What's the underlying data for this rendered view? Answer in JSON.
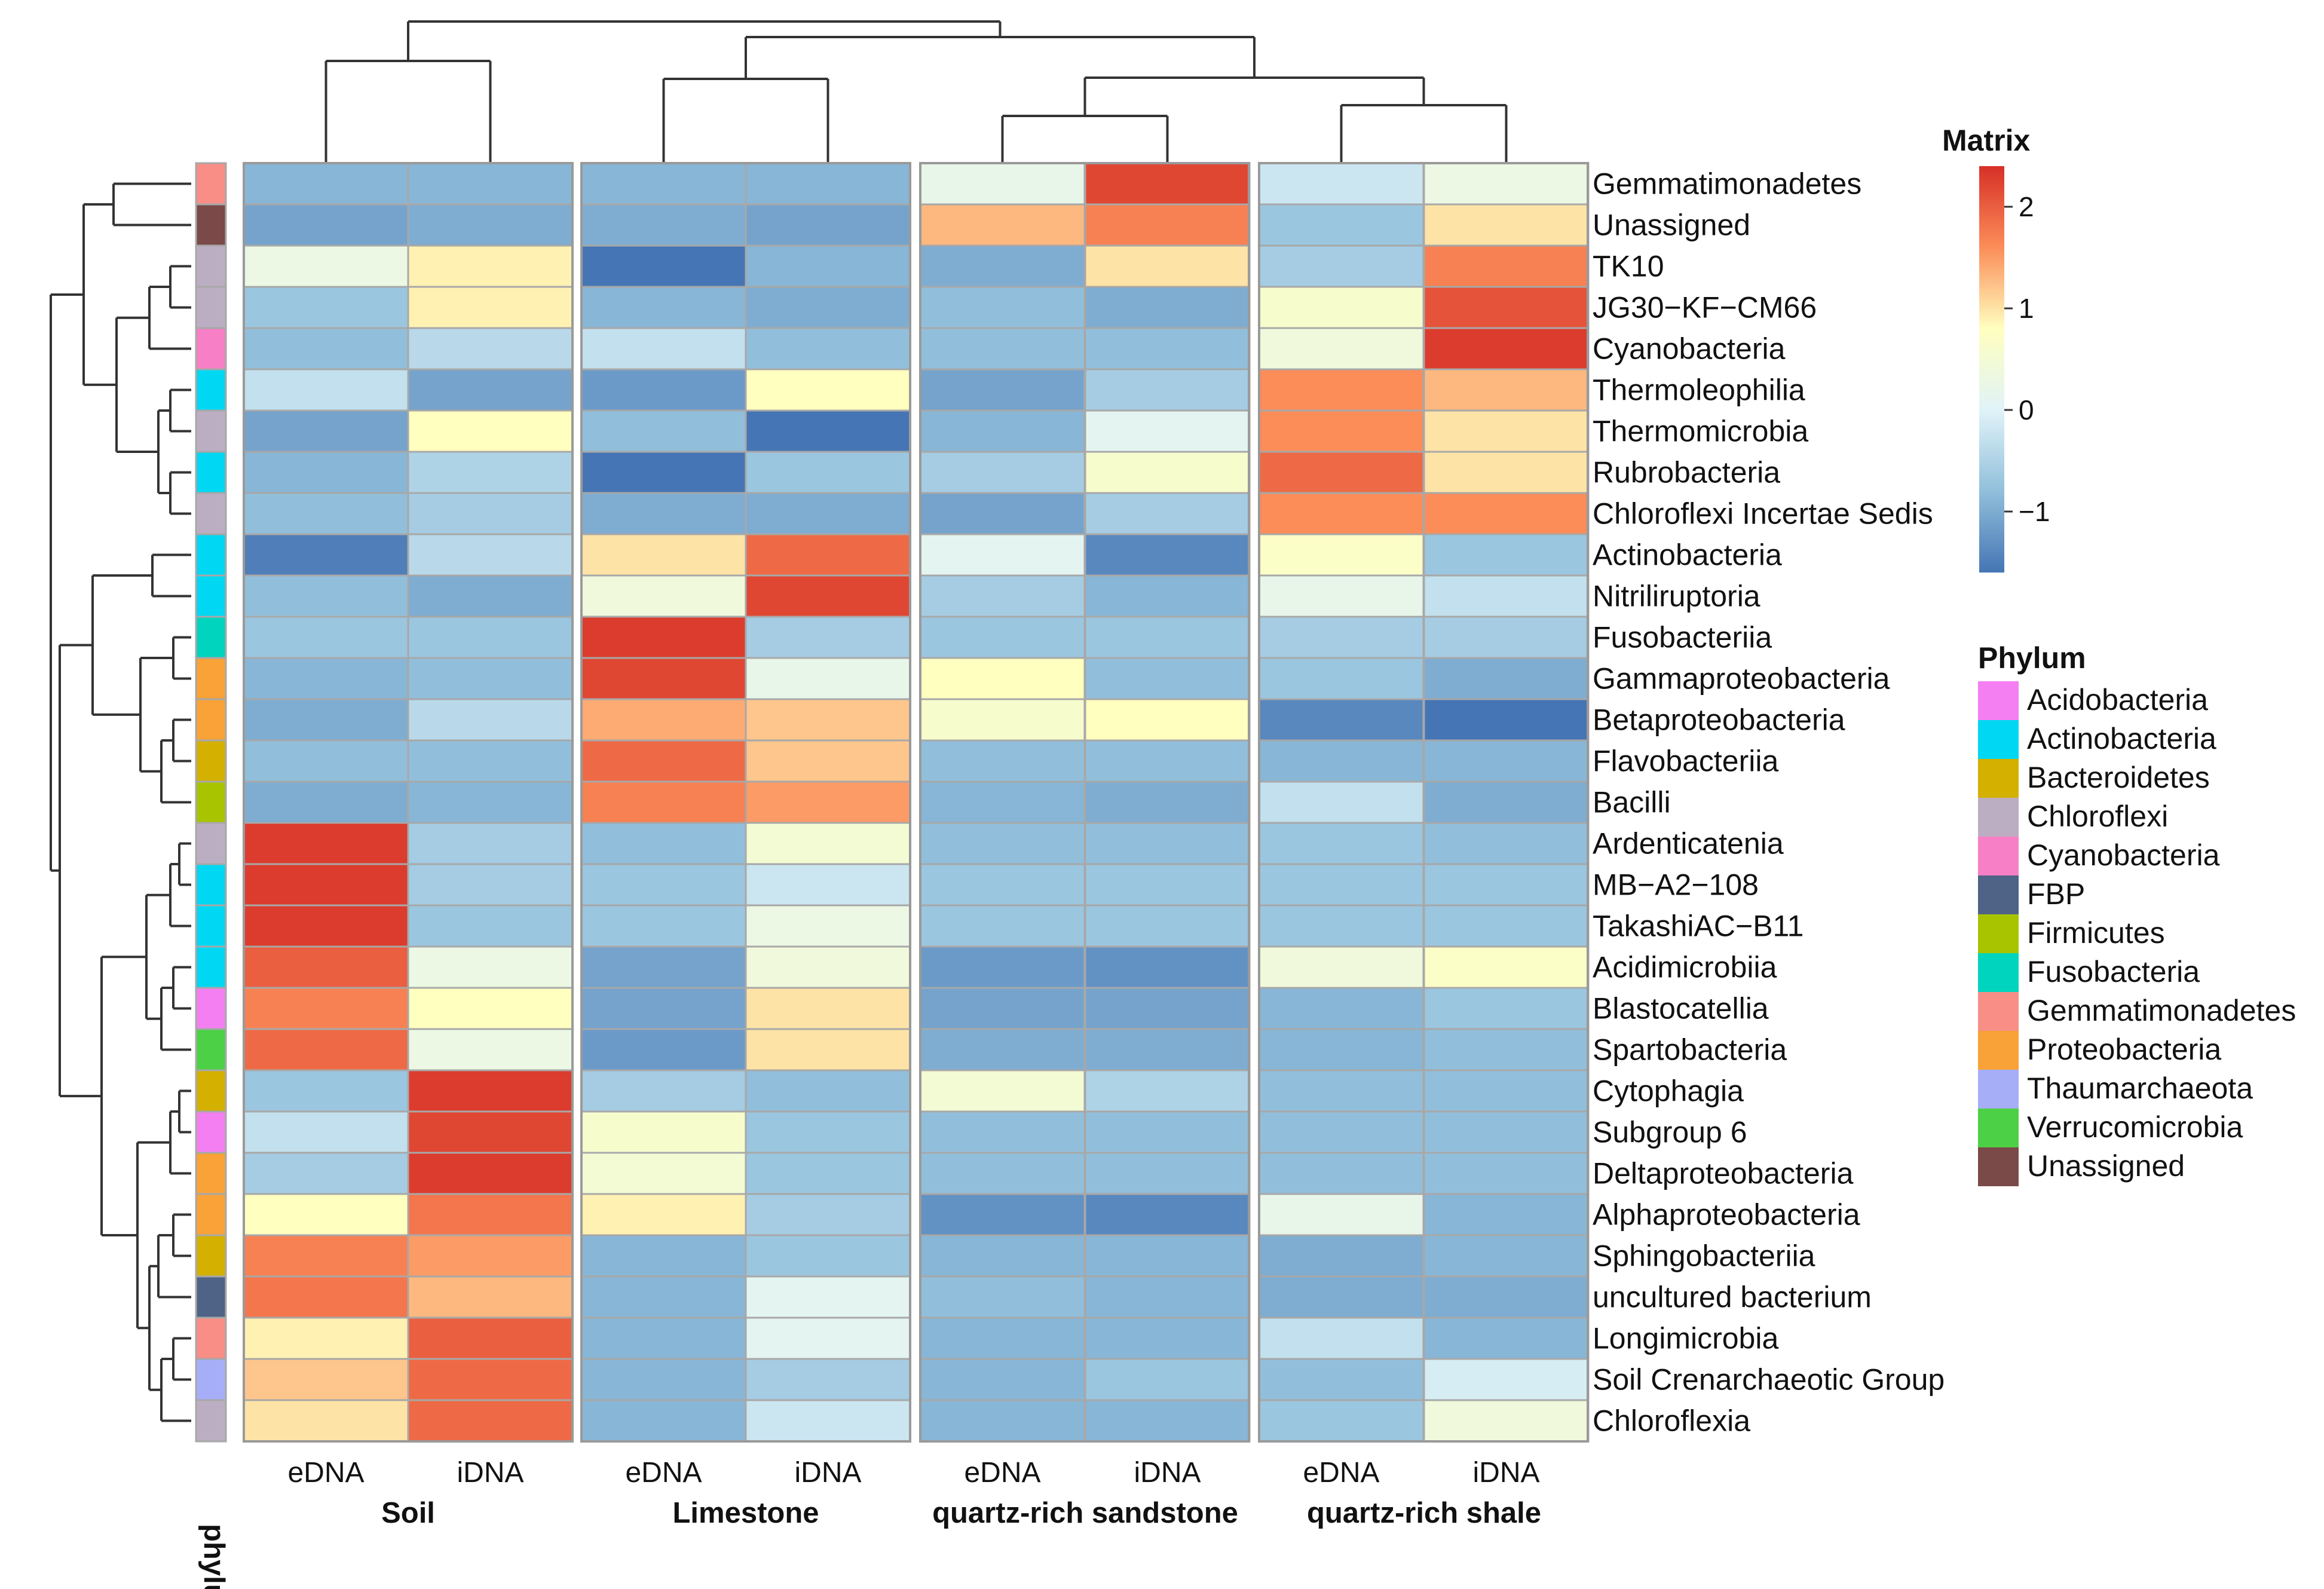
{
  "chart_data": {
    "type": "heatmap",
    "title": "",
    "rows": [
      {
        "label": "Gemmatimonadetes",
        "phylum": "Gemmatimonadetes",
        "values": [
          -0.9,
          -0.9,
          -0.9,
          -0.9,
          0.2,
          2.2,
          -0.2,
          0.3
        ]
      },
      {
        "label": "Unassigned",
        "phylum": "Unassigned",
        "values": [
          -1.1,
          -1.0,
          -1.0,
          -1.1,
          1.3,
          1.7,
          -0.7,
          1.0
        ]
      },
      {
        "label": "TK10",
        "phylum": "Chloroflexi",
        "values": [
          0.3,
          0.9,
          -1.6,
          -0.9,
          -1.0,
          1.0,
          -0.6,
          1.7
        ]
      },
      {
        "label": "JG30−KF−CM66",
        "phylum": "Chloroflexi",
        "values": [
          -0.7,
          0.9,
          -0.9,
          -1.0,
          -0.8,
          -1.0,
          0.6,
          2.1
        ]
      },
      {
        "label": "Cyanobacteria",
        "phylum": "Cyanobacteria",
        "values": [
          -0.8,
          -0.4,
          -0.3,
          -0.8,
          -0.8,
          -0.8,
          0.4,
          2.3
        ]
      },
      {
        "label": "Thermoleophilia",
        "phylum": "Actinobacteria",
        "values": [
          -0.3,
          -1.1,
          -1.2,
          0.8,
          -1.1,
          -0.6,
          1.6,
          1.3
        ]
      },
      {
        "label": "Thermomicrobia",
        "phylum": "Chloroflexi",
        "values": [
          -1.1,
          0.8,
          -0.8,
          -1.7,
          -0.9,
          0.1,
          1.6,
          1.0
        ]
      },
      {
        "label": "Rubrobacteria",
        "phylum": "Actinobacteria",
        "values": [
          -0.9,
          -0.5,
          -1.6,
          -0.7,
          -0.6,
          0.6,
          1.9,
          1.0
        ]
      },
      {
        "label": "Chloroflexi Incertae Sedis",
        "phylum": "Chloroflexi",
        "values": [
          -0.8,
          -0.6,
          -1.0,
          -1.0,
          -1.1,
          -0.6,
          1.6,
          1.6
        ]
      },
      {
        "label": "Actinobacteria",
        "phylum": "Actinobacteria",
        "values": [
          -1.5,
          -0.4,
          1.0,
          1.9,
          0.1,
          -1.4,
          0.7,
          -0.7
        ]
      },
      {
        "label": "Nitriliruptoria",
        "phylum": "Actinobacteria",
        "values": [
          -0.8,
          -1.0,
          0.4,
          2.2,
          -0.6,
          -0.9,
          0.2,
          -0.3
        ]
      },
      {
        "label": "Fusobacteriia",
        "phylum": "Fusobacteria",
        "values": [
          -0.7,
          -0.7,
          2.3,
          -0.6,
          -0.7,
          -0.7,
          -0.6,
          -0.6
        ]
      },
      {
        "label": "Gammaproteobacteria",
        "phylum": "Proteobacteria",
        "values": [
          -0.9,
          -0.8,
          2.2,
          0.2,
          0.8,
          -0.8,
          -0.7,
          -1.0
        ]
      },
      {
        "label": "Betaproteobacteria",
        "phylum": "Proteobacteria",
        "values": [
          -1.0,
          -0.4,
          1.4,
          1.2,
          0.6,
          0.8,
          -1.4,
          -1.6
        ]
      },
      {
        "label": "Flavobacteriia",
        "phylum": "Bacteroidetes",
        "values": [
          -0.8,
          -0.8,
          1.9,
          1.2,
          -0.8,
          -0.8,
          -0.9,
          -0.9
        ]
      },
      {
        "label": "Bacilli",
        "phylum": "Firmicutes",
        "values": [
          -1.0,
          -0.9,
          1.7,
          1.5,
          -0.9,
          -1.0,
          -0.3,
          -1.0
        ]
      },
      {
        "label": "Ardenticatenia",
        "phylum": "Chloroflexi",
        "values": [
          2.3,
          -0.6,
          -0.8,
          0.5,
          -0.8,
          -0.8,
          -0.7,
          -0.8
        ]
      },
      {
        "label": "MB−A2−108",
        "phylum": "Actinobacteria",
        "values": [
          2.3,
          -0.6,
          -0.7,
          -0.2,
          -0.7,
          -0.7,
          -0.7,
          -0.7
        ]
      },
      {
        "label": "TakashiAC−B11",
        "phylum": "Actinobacteria",
        "values": [
          2.3,
          -0.7,
          -0.7,
          0.3,
          -0.7,
          -0.7,
          -0.7,
          -0.7
        ]
      },
      {
        "label": "Acidimicrobiia",
        "phylum": "Actinobacteria",
        "values": [
          2.0,
          0.3,
          -1.1,
          0.4,
          -1.2,
          -1.3,
          0.4,
          0.7
        ]
      },
      {
        "label": "Blastocatellia",
        "phylum": "Acidobacteria",
        "values": [
          1.7,
          0.8,
          -1.1,
          1.0,
          -1.1,
          -1.1,
          -0.9,
          -0.7
        ]
      },
      {
        "label": "Spartobacteria",
        "phylum": "Verrucomicrobia",
        "values": [
          1.9,
          0.3,
          -1.2,
          1.0,
          -1.0,
          -1.0,
          -0.9,
          -0.8
        ]
      },
      {
        "label": "Cytophagia",
        "phylum": "Bacteroidetes",
        "values": [
          -0.7,
          2.3,
          -0.6,
          -0.8,
          0.5,
          -0.5,
          -0.8,
          -0.8
        ]
      },
      {
        "label": "Subgroup 6",
        "phylum": "Acidobacteria",
        "values": [
          -0.3,
          2.2,
          0.6,
          -0.7,
          -0.8,
          -0.8,
          -0.8,
          -0.8
        ]
      },
      {
        "label": "Deltaproteobacteria",
        "phylum": "Proteobacteria",
        "values": [
          -0.6,
          2.3,
          0.5,
          -0.7,
          -0.8,
          -0.8,
          -0.8,
          -0.8
        ]
      },
      {
        "label": "Alphaproteobacteria",
        "phylum": "Proteobacteria",
        "values": [
          0.8,
          1.8,
          0.9,
          -0.6,
          -1.3,
          -1.4,
          0.2,
          -0.9
        ]
      },
      {
        "label": "Sphingobacteriia",
        "phylum": "Bacteroidetes",
        "values": [
          1.7,
          1.5,
          -0.9,
          -0.7,
          -0.9,
          -0.9,
          -1.0,
          -0.9
        ]
      },
      {
        "label": "uncultured bacterium",
        "phylum": "FBP",
        "values": [
          1.8,
          1.3,
          -0.9,
          0.1,
          -0.8,
          -0.9,
          -1.0,
          -1.0
        ]
      },
      {
        "label": "Longimicrobia",
        "phylum": "Gemmatimonadetes",
        "values": [
          0.9,
          2.0,
          -0.9,
          0.1,
          -0.9,
          -0.9,
          -0.3,
          -0.9
        ]
      },
      {
        "label": "Soil Crenarchaeotic Group",
        "phylum": "Thaumarchaeota",
        "values": [
          1.2,
          1.9,
          -0.9,
          -0.6,
          -0.9,
          -0.7,
          -0.8,
          -0.1
        ]
      },
      {
        "label": "Chloroflexia",
        "phylum": "Chloroflexi",
        "values": [
          1.0,
          1.9,
          -0.9,
          -0.2,
          -0.9,
          -0.9,
          -0.7,
          0.4
        ]
      }
    ],
    "columns": [
      "eDNA",
      "iDNA",
      "eDNA",
      "iDNA",
      "eDNA",
      "iDNA",
      "eDNA",
      "iDNA"
    ],
    "column_groups": [
      "Soil",
      "Limestone",
      "quartz-rich sandstone",
      "quartz-rich shale"
    ],
    "annotation_label": "phylum",
    "colorbar": {
      "title": "Matrix",
      "ticks": [
        2,
        1,
        0,
        -1
      ],
      "tick_labels": [
        "2",
        "1",
        "0",
        "−1"
      ],
      "range": [
        -1.6,
        2.4
      ]
    },
    "palette": {
      "low": "#4575b4",
      "mid": "#ffffbf",
      "high": "#d73027"
    },
    "legend": {
      "title": "Phylum",
      "items": [
        {
          "name": "Acidobacteria",
          "color": "#f47ff2"
        },
        {
          "name": "Actinobacteria",
          "color": "#00d8f3"
        },
        {
          "name": "Bacteroidetes",
          "color": "#d4b000"
        },
        {
          "name": "Chloroflexi",
          "color": "#bcaec2"
        },
        {
          "name": "Cyanobacteria",
          "color": "#f77fc6"
        },
        {
          "name": "FBP",
          "color": "#4e6386"
        },
        {
          "name": "Firmicutes",
          "color": "#a8c400"
        },
        {
          "name": "Fusobacteria",
          "color": "#00d4be"
        },
        {
          "name": "Gemmatimonadetes",
          "color": "#f88e86"
        },
        {
          "name": "Proteobacteria",
          "color": "#f8a237"
        },
        {
          "name": "Thaumarchaeota",
          "color": "#a7aef8"
        },
        {
          "name": "Verrucomicrobia",
          "color": "#4cd045"
        },
        {
          "name": "Unassigned",
          "color": "#7a4a48"
        }
      ]
    }
  }
}
